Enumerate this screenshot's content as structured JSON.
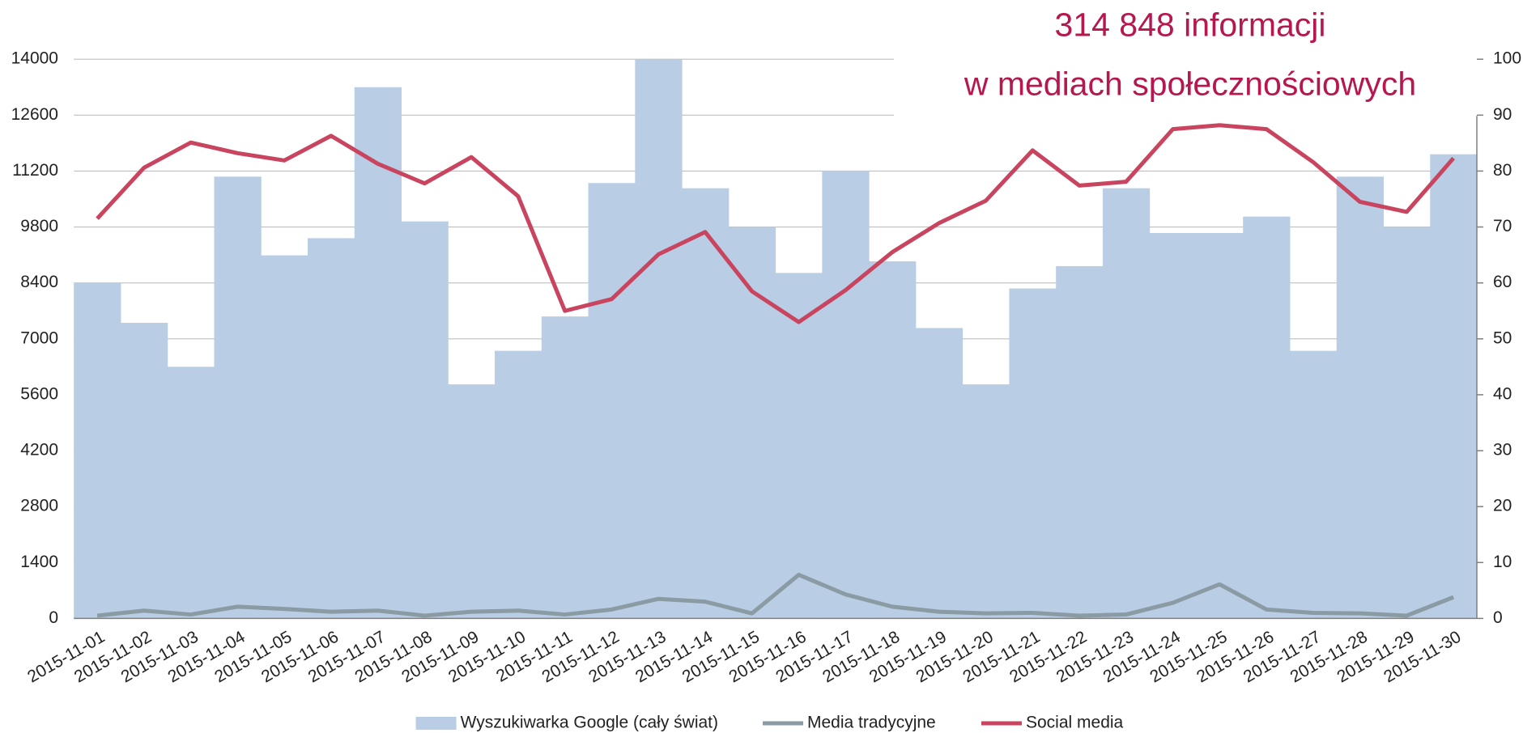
{
  "chart_data": {
    "type": "combo",
    "annotation": [
      "314 848 informacji",
      "w mediach społecznościowych"
    ],
    "categories": [
      "2015-11-01",
      "2015-11-02",
      "2015-11-03",
      "2015-11-04",
      "2015-11-05",
      "2015-11-06",
      "2015-11-07",
      "2015-11-08",
      "2015-11-09",
      "2015-11-10",
      "2015-11-11",
      "2015-11-12",
      "2015-11-13",
      "2015-11-14",
      "2015-11-15",
      "2015-11-16",
      "2015-11-17",
      "2015-11-18",
      "2015-11-19",
      "2015-11-20",
      "2015-11-21",
      "2015-11-22",
      "2015-11-23",
      "2015-11-24",
      "2015-11-25",
      "2015-11-26",
      "2015-11-27",
      "2015-11-28",
      "2015-11-29",
      "2015-11-30"
    ],
    "series": [
      {
        "name": "Wyszukiwarka Google (cały świat)",
        "type": "bar",
        "color": "#b9cde5",
        "axis": "y",
        "values": [
          8400,
          7400,
          6300,
          11060,
          9090,
          9520,
          13300,
          9940,
          5860,
          6700,
          7560,
          10900,
          14000,
          10770,
          9800,
          8650,
          11200,
          8940,
          7270,
          5860,
          8260,
          8820,
          10770,
          9650,
          9650,
          10060,
          6700,
          11060,
          9800,
          11620
        ]
      },
      {
        "name": "Media tradycyjne",
        "type": "line",
        "color": "#8a9ba3",
        "axis": "y2",
        "values": [
          0.5,
          1.4,
          0.7,
          2.1,
          1.7,
          1.2,
          1.4,
          0.5,
          1.2,
          1.4,
          0.7,
          1.6,
          3.5,
          3.0,
          0.9,
          7.8,
          4.3,
          2.1,
          1.2,
          0.9,
          1.0,
          0.5,
          0.7,
          2.8,
          6.1,
          1.6,
          1.0,
          0.9,
          0.5,
          3.8
        ]
      },
      {
        "name": "Social media",
        "type": "line",
        "color": "#c9445e",
        "axis": "y2",
        "values": [
          71.5,
          80.6,
          85.1,
          83.2,
          81.9,
          86.3,
          81.3,
          77.8,
          82.5,
          75.5,
          55.0,
          57.1,
          65.1,
          69.1,
          58.5,
          53.0,
          58.7,
          65.5,
          70.7,
          74.7,
          83.7,
          77.4,
          78.1,
          87.5,
          88.2,
          87.5,
          81.6,
          74.5,
          72.7,
          82.3
        ]
      }
    ],
    "ylim": [
      0,
      14000
    ],
    "yticks": [
      0,
      1400,
      2800,
      4200,
      5600,
      7000,
      8400,
      9800,
      11200,
      12600,
      14000
    ],
    "y2lim": [
      0,
      100
    ],
    "y2ticks": [
      0,
      10,
      20,
      30,
      40,
      50,
      60,
      70,
      80,
      90,
      100
    ],
    "grid": true,
    "legend": "bottom"
  }
}
